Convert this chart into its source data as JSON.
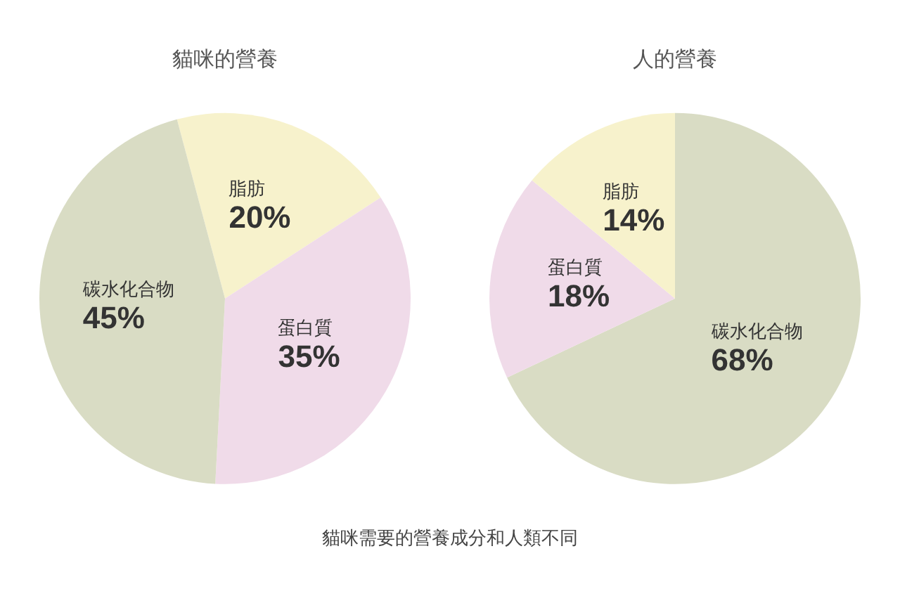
{
  "chart_data": [
    {
      "type": "pie",
      "title": "貓咪的營養",
      "categories": [
        "脂肪",
        "蛋白質",
        "碳水化合物"
      ],
      "values": [
        20,
        35,
        45
      ],
      "colors": [
        "#f7f2cc",
        "#f0dbe9",
        "#d9dcc4"
      ],
      "value_labels": [
        "20%",
        "35%",
        "45%"
      ],
      "legend": false,
      "annotations": [
        "貓咪需要的營養成分和人類不同"
      ]
    },
    {
      "type": "pie",
      "title": "人的營養",
      "categories": [
        "碳水化合物",
        "蛋白質",
        "脂肪"
      ],
      "values": [
        68,
        18,
        14
      ],
      "colors": [
        "#d9dcc4",
        "#f0dbe9",
        "#f7f2cc"
      ],
      "value_labels": [
        "68%",
        "18%",
        "14%"
      ],
      "legend": false
    }
  ]
}
